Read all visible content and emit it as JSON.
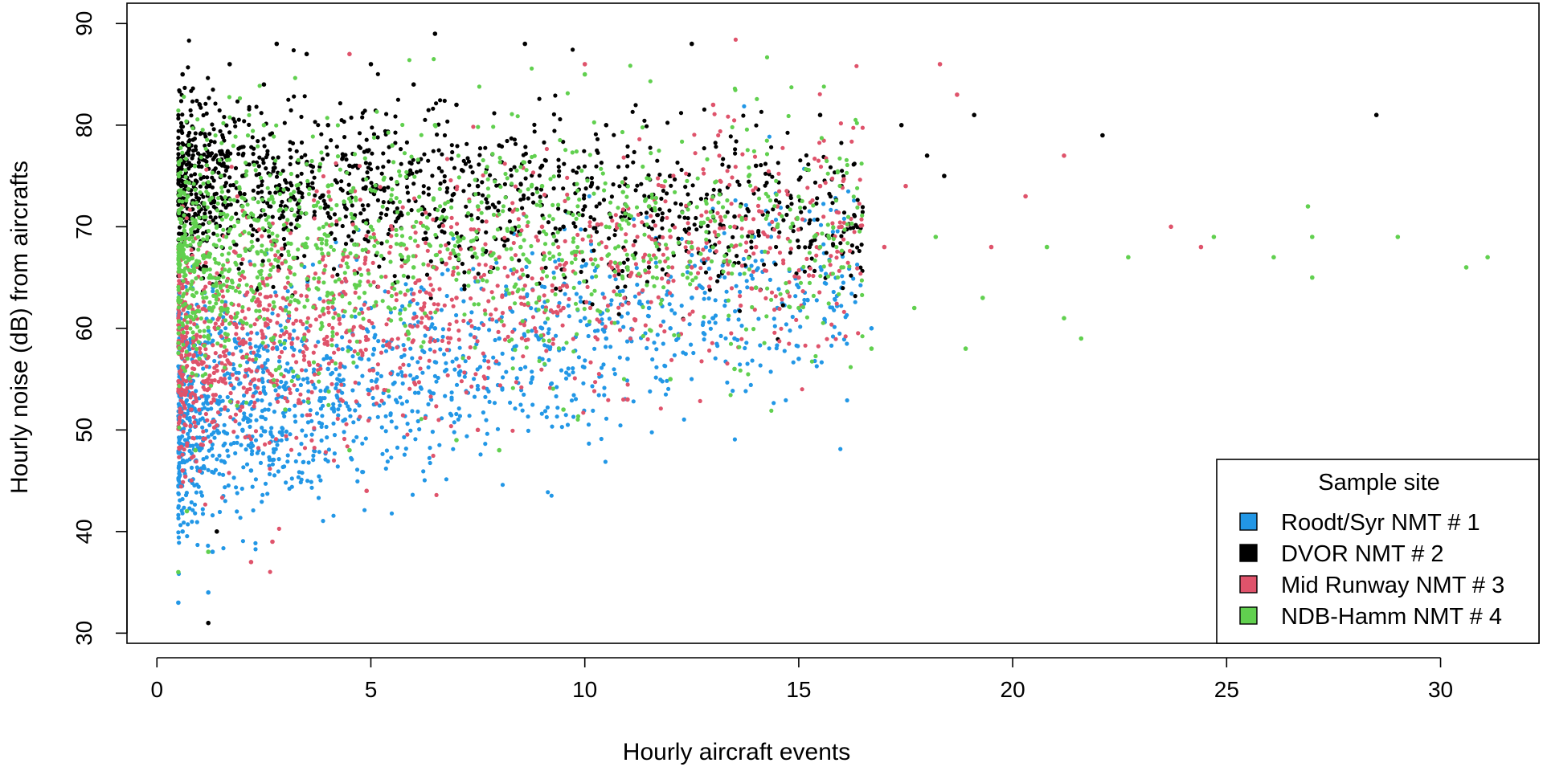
{
  "chart_data": {
    "type": "scatter",
    "title": "",
    "xlabel": "Hourly aircraft events",
    "ylabel": "Hourly noise (dB) from aircrafts",
    "xlim": [
      -0.7,
      32.3
    ],
    "ylim": [
      29,
      92
    ],
    "xticks": [
      0,
      5,
      10,
      15,
      20,
      25,
      30
    ],
    "yticks": [
      30,
      40,
      50,
      60,
      70,
      80,
      90
    ],
    "grid": false,
    "legend": {
      "title": "Sample site",
      "placement": "bottom-right"
    },
    "series": [
      {
        "name": "Roodt/Syr NMT # 1",
        "color": "#2297E6",
        "points": [
          [
            0.5,
            33
          ],
          [
            0.6,
            40
          ],
          [
            0.8,
            45
          ],
          [
            1.0,
            48
          ],
          [
            1.2,
            34
          ],
          [
            1.3,
            38
          ],
          [
            1.5,
            52
          ],
          [
            1.8,
            56
          ],
          [
            2.0,
            50
          ],
          [
            2.2,
            46
          ],
          [
            2.5,
            58
          ],
          [
            3.0,
            54
          ],
          [
            3.5,
            60
          ],
          [
            4.0,
            56
          ],
          [
            4.5,
            52
          ],
          [
            5.0,
            62
          ],
          [
            5.5,
            58
          ],
          [
            6.0,
            55
          ],
          [
            6.5,
            60
          ],
          [
            7.0,
            57
          ],
          [
            7.5,
            54
          ],
          [
            8.0,
            59
          ],
          [
            8.5,
            56
          ],
          [
            9.0,
            60
          ],
          [
            9.5,
            58
          ],
          [
            10.0,
            61
          ],
          [
            10.5,
            59
          ],
          [
            11.0,
            57
          ],
          [
            11.5,
            62
          ],
          [
            12.0,
            60
          ],
          [
            12.5,
            63
          ],
          [
            13.0,
            61
          ],
          [
            13.5,
            59
          ],
          [
            14.0,
            64
          ],
          [
            14.5,
            62
          ],
          [
            15.0,
            57
          ],
          [
            16.0,
            64
          ],
          [
            16.7,
            60
          ]
        ]
      },
      {
        "name": "DVOR NMT # 2",
        "color": "#000000",
        "points": [
          [
            0.6,
            85
          ],
          [
            0.8,
            78
          ],
          [
            1.0,
            82
          ],
          [
            1.2,
            31
          ],
          [
            1.4,
            40
          ],
          [
            1.7,
            86
          ],
          [
            2.0,
            75
          ],
          [
            2.5,
            84
          ],
          [
            2.8,
            88
          ],
          [
            3.0,
            72
          ],
          [
            3.5,
            87
          ],
          [
            4.0,
            80
          ],
          [
            4.5,
            76
          ],
          [
            5.0,
            86
          ],
          [
            5.5,
            70
          ],
          [
            6.0,
            84
          ],
          [
            6.5,
            89
          ],
          [
            7.0,
            82
          ],
          [
            7.5,
            74
          ],
          [
            8.0,
            78
          ],
          [
            8.6,
            88
          ],
          [
            9.0,
            76
          ],
          [
            9.5,
            70
          ],
          [
            10.0,
            72
          ],
          [
            10.5,
            80
          ],
          [
            11.0,
            74
          ],
          [
            11.5,
            66
          ],
          [
            12.0,
            75
          ],
          [
            12.5,
            88
          ],
          [
            13.0,
            73
          ],
          [
            13.5,
            71
          ],
          [
            14.0,
            76
          ],
          [
            14.5,
            70
          ],
          [
            15.0,
            68
          ],
          [
            15.5,
            81
          ],
          [
            16.0,
            74
          ],
          [
            17.4,
            80
          ],
          [
            18.0,
            77
          ],
          [
            18.4,
            75
          ],
          [
            19.1,
            81
          ],
          [
            22.1,
            79
          ],
          [
            28.5,
            81
          ]
        ]
      },
      {
        "name": "Mid Runway NMT # 3",
        "color": "#DF536B",
        "points": [
          [
            0.6,
            46
          ],
          [
            0.8,
            52
          ],
          [
            1.0,
            58
          ],
          [
            1.2,
            55
          ],
          [
            1.5,
            62
          ],
          [
            2.0,
            60
          ],
          [
            2.2,
            37
          ],
          [
            2.7,
            39
          ],
          [
            3.0,
            64
          ],
          [
            3.5,
            58
          ],
          [
            4.0,
            62
          ],
          [
            4.5,
            87
          ],
          [
            4.9,
            44
          ],
          [
            5.5,
            64
          ],
          [
            6.0,
            61
          ],
          [
            6.5,
            66
          ],
          [
            7.0,
            63
          ],
          [
            7.5,
            50
          ],
          [
            8.0,
            67
          ],
          [
            8.5,
            65
          ],
          [
            9.0,
            70
          ],
          [
            9.5,
            62
          ],
          [
            10.0,
            86
          ],
          [
            10.5,
            68
          ],
          [
            11.0,
            53
          ],
          [
            11.5,
            72
          ],
          [
            12.0,
            69
          ],
          [
            12.5,
            66
          ],
          [
            13.0,
            82
          ],
          [
            13.5,
            70
          ],
          [
            14.0,
            68
          ],
          [
            14.5,
            72
          ],
          [
            15.0,
            65
          ],
          [
            15.5,
            74
          ],
          [
            16.0,
            70
          ],
          [
            17.0,
            68
          ],
          [
            17.5,
            74
          ],
          [
            18.3,
            86
          ],
          [
            18.7,
            83
          ],
          [
            19.5,
            68
          ],
          [
            20.3,
            73
          ],
          [
            21.2,
            77
          ],
          [
            23.7,
            70
          ],
          [
            24.4,
            68
          ]
        ]
      },
      {
        "name": "NDB-Hamm NMT # 4",
        "color": "#61D04F",
        "points": [
          [
            0.5,
            36
          ],
          [
            0.7,
            42
          ],
          [
            0.9,
            48
          ],
          [
            1.0,
            70
          ],
          [
            1.2,
            38
          ],
          [
            1.5,
            75
          ],
          [
            2.0,
            72
          ],
          [
            2.5,
            80
          ],
          [
            3.0,
            52
          ],
          [
            3.5,
            68
          ],
          [
            4.0,
            74
          ],
          [
            4.5,
            48
          ],
          [
            5.0,
            70
          ],
          [
            5.5,
            78
          ],
          [
            6.0,
            66
          ],
          [
            6.5,
            80
          ],
          [
            7.0,
            49
          ],
          [
            7.5,
            72
          ],
          [
            8.0,
            48
          ],
          [
            8.5,
            68
          ],
          [
            9.0,
            74
          ],
          [
            9.5,
            52
          ],
          [
            10.0,
            85
          ],
          [
            10.5,
            70
          ],
          [
            11.0,
            66
          ],
          [
            11.5,
            72
          ],
          [
            12.0,
            55
          ],
          [
            12.5,
            68
          ],
          [
            13.0,
            71
          ],
          [
            13.5,
            56
          ],
          [
            14.0,
            64
          ],
          [
            14.5,
            70
          ],
          [
            15.0,
            62
          ],
          [
            15.5,
            68
          ],
          [
            16.0,
            66
          ],
          [
            16.7,
            58
          ],
          [
            17.7,
            62
          ],
          [
            18.2,
            69
          ],
          [
            18.9,
            58
          ],
          [
            19.3,
            63
          ],
          [
            20.8,
            68
          ],
          [
            21.2,
            61
          ],
          [
            21.6,
            59
          ],
          [
            22.7,
            67
          ],
          [
            24.7,
            69
          ],
          [
            26.1,
            67
          ],
          [
            26.9,
            72
          ],
          [
            27.0,
            69
          ],
          [
            27.0,
            65
          ],
          [
            29.0,
            69
          ],
          [
            30.6,
            66
          ],
          [
            31.1,
            67
          ]
        ]
      }
    ]
  }
}
